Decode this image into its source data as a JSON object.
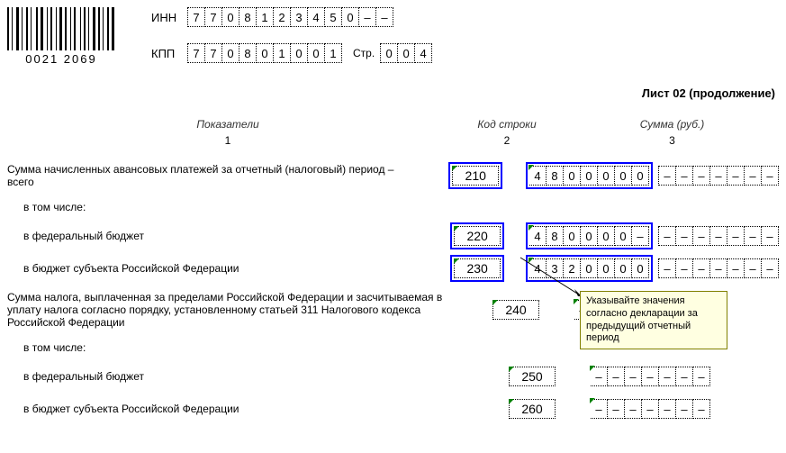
{
  "barcode": {
    "text": "0021 2069"
  },
  "ids": {
    "inn_label": "ИНН",
    "inn": [
      "7",
      "7",
      "0",
      "8",
      "1",
      "2",
      "3",
      "4",
      "5",
      "0",
      "–",
      "–"
    ],
    "kpp_label": "КПП",
    "kpp": [
      "7",
      "7",
      "0",
      "8",
      "0",
      "1",
      "0",
      "0",
      "1"
    ],
    "page_label": "Стр.",
    "page": [
      "0",
      "0",
      "4"
    ]
  },
  "sheet_title": "Лист 02 (продолжение)",
  "headers": {
    "col1": "Показатели",
    "col2": "Код строки",
    "col3": "Сумма (руб.)",
    "n1": "1",
    "n2": "2",
    "n3": "3"
  },
  "rows": [
    {
      "desc": "Сумма начисленных авансовых платежей за отчетный (налоговый) период – всего",
      "code": "210",
      "amount": [
        "4",
        "8",
        "0",
        "0",
        "0",
        "0",
        "0"
      ],
      "highlight": true,
      "indent": false,
      "show_tail": true,
      "empty_amount": false
    },
    {
      "desc": "в том числе:",
      "code": "",
      "amount": [],
      "highlight": false,
      "indent": true,
      "show_tail": false,
      "empty_amount": false
    },
    {
      "desc": "в федеральный бюджет",
      "code": "220",
      "amount": [
        "4",
        "8",
        "0",
        "0",
        "0",
        "0",
        "–"
      ],
      "highlight": true,
      "indent": true,
      "show_tail": true,
      "empty_amount": false
    },
    {
      "desc": "в бюджет субъекта Российской Федерации",
      "code": "230",
      "amount": [
        "4",
        "3",
        "2",
        "0",
        "0",
        "0",
        "0"
      ],
      "highlight": true,
      "indent": true,
      "show_tail": true,
      "empty_amount": false
    },
    {
      "desc": "Сумма налога, выплаченная за пределами Российской Федерации и засчитываемая в уплату налога согласно порядку, установленному статьей 311 Налогового кодекса Российской Федерации",
      "code": "240",
      "amount": [
        "–",
        "–",
        "–",
        "–",
        "–",
        "–",
        "–"
      ],
      "highlight": false,
      "indent": false,
      "show_tail": false,
      "empty_amount": true
    },
    {
      "desc": "в том числе:",
      "code": "",
      "amount": [],
      "highlight": false,
      "indent": true,
      "show_tail": false,
      "empty_amount": false
    },
    {
      "desc": "в федеральный бюджет",
      "code": "250",
      "amount": [
        "–",
        "–",
        "–",
        "–",
        "–",
        "–",
        "–"
      ],
      "highlight": false,
      "indent": true,
      "show_tail": false,
      "empty_amount": true
    },
    {
      "desc": "в бюджет субъекта Российской Федерации",
      "code": "260",
      "amount": [
        "–",
        "–",
        "–",
        "–",
        "–",
        "–",
        "–"
      ],
      "highlight": false,
      "indent": true,
      "show_tail": false,
      "empty_amount": true
    }
  ],
  "tooltip": "Указывайте значения согласно декларации за предыдущий отчетный период",
  "tail_dashes": [
    "–",
    "–",
    "–",
    "–",
    "–",
    "–",
    "–"
  ],
  "colors": {
    "highlight": "#0000ff",
    "tick": "#008000",
    "tooltip_bg": "#ffffe1",
    "tooltip_border": "#808000"
  }
}
